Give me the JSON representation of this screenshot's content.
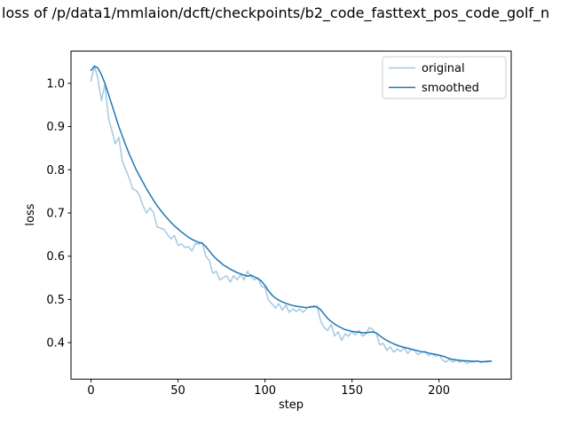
{
  "chart_data": {
    "type": "line",
    "title": "loss of /p/data1/mmlaion/dcft/checkpoints/b2_code_fasttext_pos_code_golf_n",
    "xlabel": "step",
    "ylabel": "loss",
    "xlim": [
      -11.5,
      241.5
    ],
    "ylim": [
      0.3155,
      1.0745
    ],
    "xticks": [
      0,
      50,
      100,
      150,
      200
    ],
    "yticks": [
      0.4,
      0.5,
      0.6,
      0.7,
      0.8,
      0.9,
      1.0
    ],
    "grid": false,
    "legend": {
      "position": "upper right",
      "entries": [
        "original",
        "smoothed"
      ]
    },
    "x": [
      0,
      2,
      4,
      6,
      8,
      10,
      12,
      14,
      16,
      18,
      20,
      22,
      24,
      26,
      28,
      30,
      32,
      34,
      36,
      38,
      40,
      42,
      44,
      46,
      48,
      50,
      52,
      54,
      56,
      58,
      60,
      62,
      64,
      66,
      68,
      70,
      72,
      74,
      76,
      78,
      80,
      82,
      84,
      86,
      88,
      90,
      92,
      94,
      96,
      98,
      100,
      102,
      104,
      106,
      108,
      110,
      112,
      114,
      116,
      118,
      120,
      122,
      124,
      126,
      128,
      130,
      132,
      134,
      136,
      138,
      140,
      142,
      144,
      146,
      148,
      150,
      152,
      154,
      156,
      158,
      160,
      162,
      164,
      166,
      168,
      170,
      172,
      174,
      176,
      178,
      180,
      182,
      184,
      186,
      188,
      190,
      192,
      194,
      196,
      198,
      200,
      202,
      204,
      206,
      208,
      210,
      212,
      214,
      216,
      218,
      220,
      222,
      224,
      226,
      228,
      230
    ],
    "series": [
      {
        "name": "original",
        "color": "#a5c8e1",
        "values": [
          1.005,
          1.04,
          1.01,
          0.96,
          0.998,
          0.92,
          0.89,
          0.86,
          0.875,
          0.82,
          0.8,
          0.78,
          0.755,
          0.752,
          0.74,
          0.715,
          0.7,
          0.712,
          0.7,
          0.668,
          0.665,
          0.662,
          0.65,
          0.64,
          0.648,
          0.625,
          0.628,
          0.62,
          0.622,
          0.612,
          0.63,
          0.628,
          0.632,
          0.6,
          0.59,
          0.56,
          0.565,
          0.545,
          0.55,
          0.555,
          0.54,
          0.555,
          0.545,
          0.558,
          0.545,
          0.565,
          0.552,
          0.545,
          0.55,
          0.53,
          0.528,
          0.498,
          0.49,
          0.48,
          0.49,
          0.475,
          0.487,
          0.47,
          0.478,
          0.472,
          0.478,
          0.47,
          0.48,
          0.484,
          0.482,
          0.485,
          0.45,
          0.435,
          0.428,
          0.442,
          0.415,
          0.425,
          0.405,
          0.42,
          0.415,
          0.425,
          0.418,
          0.428,
          0.415,
          0.42,
          0.435,
          0.43,
          0.42,
          0.395,
          0.398,
          0.382,
          0.39,
          0.378,
          0.385,
          0.38,
          0.388,
          0.375,
          0.385,
          0.382,
          0.372,
          0.378,
          0.38,
          0.37,
          0.375,
          0.368,
          0.372,
          0.36,
          0.355,
          0.362,
          0.355,
          0.36,
          0.355,
          0.358,
          0.352,
          0.356,
          0.355,
          0.358,
          0.354,
          0.356,
          0.355,
          0.358
        ]
      },
      {
        "name": "smoothed",
        "color": "#1f77b4",
        "values": [
          1.03,
          1.04,
          1.035,
          1.02,
          1.0,
          0.975,
          0.95,
          0.925,
          0.9,
          0.878,
          0.856,
          0.836,
          0.818,
          0.8,
          0.785,
          0.77,
          0.755,
          0.742,
          0.729,
          0.717,
          0.706,
          0.696,
          0.687,
          0.678,
          0.67,
          0.663,
          0.656,
          0.65,
          0.644,
          0.639,
          0.635,
          0.632,
          0.63,
          0.622,
          0.612,
          0.602,
          0.594,
          0.587,
          0.58,
          0.575,
          0.57,
          0.566,
          0.562,
          0.559,
          0.556,
          0.554,
          0.556,
          0.552,
          0.548,
          0.542,
          0.532,
          0.52,
          0.51,
          0.503,
          0.498,
          0.494,
          0.491,
          0.488,
          0.486,
          0.484,
          0.483,
          0.482,
          0.481,
          0.482,
          0.484,
          0.482,
          0.476,
          0.466,
          0.456,
          0.449,
          0.443,
          0.438,
          0.434,
          0.43,
          0.428,
          0.426,
          0.425,
          0.424,
          0.423,
          0.423,
          0.424,
          0.425,
          0.422,
          0.416,
          0.41,
          0.405,
          0.401,
          0.397,
          0.394,
          0.391,
          0.389,
          0.387,
          0.385,
          0.383,
          0.381,
          0.379,
          0.378,
          0.376,
          0.374,
          0.373,
          0.371,
          0.369,
          0.366,
          0.363,
          0.361,
          0.36,
          0.359,
          0.358,
          0.358,
          0.357,
          0.357,
          0.357,
          0.356,
          0.356,
          0.357,
          0.357
        ]
      }
    ]
  }
}
